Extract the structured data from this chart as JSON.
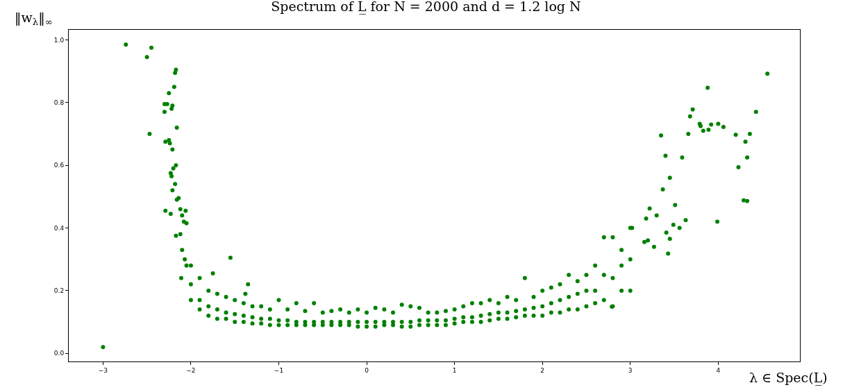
{
  "chart_data": {
    "type": "scatter",
    "title": "Spectrum of L̲ for N = 2000 and d = 1.2 log N",
    "xlabel": "λ ∈ Spec(L̲)",
    "ylabel": "‖w$_{λ}$‖$_{∞}$",
    "xlim": [
      -3.39,
      4.93
    ],
    "ylim": [
      -0.026,
      1.032
    ],
    "xticks": [
      {
        "value": -3,
        "label": "−3"
      },
      {
        "value": -2,
        "label": "−2"
      },
      {
        "value": -1,
        "label": "−1"
      },
      0,
      1,
      2,
      3,
      4
    ],
    "yticks": [
      {
        "value": 0,
        "label": "0.0"
      },
      {
        "value": 0.2,
        "label": "0.2"
      },
      {
        "value": 0.4,
        "label": "0.4"
      },
      {
        "value": 0.6,
        "label": "0.6"
      },
      {
        "value": 0.8,
        "label": "0.8"
      },
      {
        "value": 1,
        "label": "1.0"
      }
    ],
    "series": [
      {
        "color": "#008000",
        "x": [
          -3.0,
          -2.74,
          -2.5,
          -2.45,
          -2.47,
          -2.3,
          -2.27,
          -2.3,
          -2.25,
          -2.22,
          -2.21,
          -2.19,
          -2.18,
          -2.17,
          -2.16,
          -2.29,
          -2.25,
          -2.24,
          -2.21,
          -2.2,
          -2.17,
          -2.23,
          -2.22,
          -2.18,
          -2.29,
          -2.23,
          -2.21,
          -2.16,
          -2.14,
          -2.12,
          -2.1,
          -2.06,
          -2.08,
          -2.17,
          -2.12,
          -2.05,
          -2.1,
          -2.07,
          -2.05,
          -2.11,
          -1.55,
          -1.75,
          -1.35,
          -1.38,
          -2.0,
          -2.0,
          -2.0,
          -1.9,
          -1.9,
          -1.9,
          -1.8,
          -1.8,
          -1.8,
          -1.7,
          -1.7,
          -1.7,
          -1.6,
          -1.6,
          -1.6,
          -1.5,
          -1.5,
          -1.5,
          -1.4,
          -1.4,
          -1.4,
          -1.3,
          -1.3,
          -1.3,
          -1.2,
          -1.2,
          -1.2,
          -1.1,
          -1.1,
          -1.1,
          -1.0,
          -1.0,
          -1.0,
          -0.9,
          -0.9,
          -0.9,
          -0.8,
          -0.8,
          -0.8,
          -0.7,
          -0.7,
          -0.7,
          -0.6,
          -0.6,
          -0.6,
          -0.5,
          -0.5,
          -0.5,
          -0.4,
          -0.4,
          -0.4,
          -0.3,
          -0.3,
          -0.3,
          -0.2,
          -0.2,
          -0.2,
          -0.1,
          -0.1,
          -0.1,
          0.0,
          0.0,
          0.0,
          0.1,
          0.1,
          0.1,
          0.2,
          0.2,
          0.2,
          0.3,
          0.3,
          0.3,
          0.4,
          0.4,
          0.4,
          0.5,
          0.5,
          0.5,
          0.6,
          0.6,
          0.6,
          0.7,
          0.7,
          0.7,
          0.8,
          0.8,
          0.8,
          0.9,
          0.9,
          0.9,
          1.0,
          1.0,
          1.0,
          1.1,
          1.1,
          1.1,
          1.2,
          1.2,
          1.2,
          1.3,
          1.3,
          1.3,
          1.4,
          1.4,
          1.4,
          1.5,
          1.5,
          1.5,
          1.6,
          1.6,
          1.6,
          1.7,
          1.7,
          1.7,
          1.8,
          1.8,
          1.8,
          1.9,
          1.9,
          1.9,
          2.0,
          2.0,
          2.0,
          2.1,
          2.1,
          2.1,
          2.2,
          2.2,
          2.2,
          2.3,
          2.3,
          2.3,
          2.4,
          2.4,
          2.4,
          2.5,
          2.5,
          2.5,
          2.6,
          2.6,
          2.6,
          2.7,
          2.7,
          2.7,
          2.8,
          2.8,
          2.8,
          2.9,
          2.9,
          2.9,
          3.0,
          3.0,
          3.0,
          4.56,
          3.88,
          3.71,
          3.68,
          3.79,
          3.8,
          3.83,
          3.89,
          3.92,
          4.0,
          4.06,
          4.2,
          4.43,
          4.36,
          4.31,
          4.33,
          4.23,
          4.29,
          4.33,
          3.99,
          3.35,
          3.4,
          3.59,
          3.66,
          3.45,
          3.37,
          3.51,
          3.63,
          3.49,
          3.56,
          3.41,
          3.45,
          3.43,
          3.22,
          3.3,
          3.18,
          3.02,
          3.2,
          3.16,
          3.27,
          2.79
        ],
        "values": [
          0.02,
          0.985,
          0.945,
          0.975,
          0.7,
          0.795,
          0.795,
          0.77,
          0.83,
          0.78,
          0.79,
          0.85,
          0.895,
          0.905,
          0.72,
          0.675,
          0.68,
          0.67,
          0.65,
          0.59,
          0.6,
          0.575,
          0.565,
          0.54,
          0.455,
          0.445,
          0.52,
          0.49,
          0.495,
          0.46,
          0.44,
          0.455,
          0.42,
          0.375,
          0.38,
          0.415,
          0.33,
          0.3,
          0.28,
          0.24,
          0.305,
          0.255,
          0.22,
          0.19,
          0.17,
          0.22,
          0.28,
          0.14,
          0.17,
          0.24,
          0.12,
          0.15,
          0.2,
          0.11,
          0.14,
          0.19,
          0.11,
          0.13,
          0.18,
          0.1,
          0.125,
          0.17,
          0.1,
          0.12,
          0.16,
          0.095,
          0.115,
          0.15,
          0.095,
          0.11,
          0.15,
          0.09,
          0.11,
          0.14,
          0.09,
          0.105,
          0.17,
          0.09,
          0.105,
          0.14,
          0.09,
          0.1,
          0.16,
          0.09,
          0.1,
          0.135,
          0.09,
          0.1,
          0.16,
          0.09,
          0.1,
          0.13,
          0.09,
          0.1,
          0.135,
          0.09,
          0.1,
          0.14,
          0.09,
          0.1,
          0.13,
          0.085,
          0.1,
          0.14,
          0.085,
          0.1,
          0.13,
          0.085,
          0.1,
          0.145,
          0.09,
          0.1,
          0.14,
          0.09,
          0.1,
          0.13,
          0.085,
          0.1,
          0.155,
          0.085,
          0.1,
          0.15,
          0.09,
          0.105,
          0.145,
          0.09,
          0.105,
          0.13,
          0.09,
          0.105,
          0.13,
          0.09,
          0.105,
          0.135,
          0.095,
          0.11,
          0.14,
          0.1,
          0.115,
          0.15,
          0.1,
          0.115,
          0.16,
          0.1,
          0.12,
          0.16,
          0.105,
          0.125,
          0.17,
          0.11,
          0.13,
          0.16,
          0.11,
          0.13,
          0.18,
          0.115,
          0.135,
          0.17,
          0.12,
          0.14,
          0.24,
          0.12,
          0.145,
          0.18,
          0.12,
          0.15,
          0.2,
          0.13,
          0.16,
          0.21,
          0.13,
          0.17,
          0.22,
          0.14,
          0.18,
          0.25,
          0.14,
          0.19,
          0.23,
          0.15,
          0.2,
          0.25,
          0.16,
          0.2,
          0.28,
          0.17,
          0.25,
          0.37,
          0.15,
          0.24,
          0.37,
          0.2,
          0.28,
          0.33,
          0.2,
          0.3,
          0.4,
          0.892,
          0.847,
          0.778,
          0.756,
          0.732,
          0.725,
          0.71,
          0.713,
          0.73,
          0.732,
          0.722,
          0.697,
          0.77,
          0.7,
          0.675,
          0.625,
          0.594,
          0.488,
          0.486,
          0.42,
          0.695,
          0.63,
          0.625,
          0.7,
          0.56,
          0.523,
          0.473,
          0.425,
          0.41,
          0.4,
          0.385,
          0.365,
          0.318,
          0.462,
          0.44,
          0.43,
          0.4,
          0.36,
          0.355,
          0.34,
          0.149
        ]
      }
    ]
  }
}
